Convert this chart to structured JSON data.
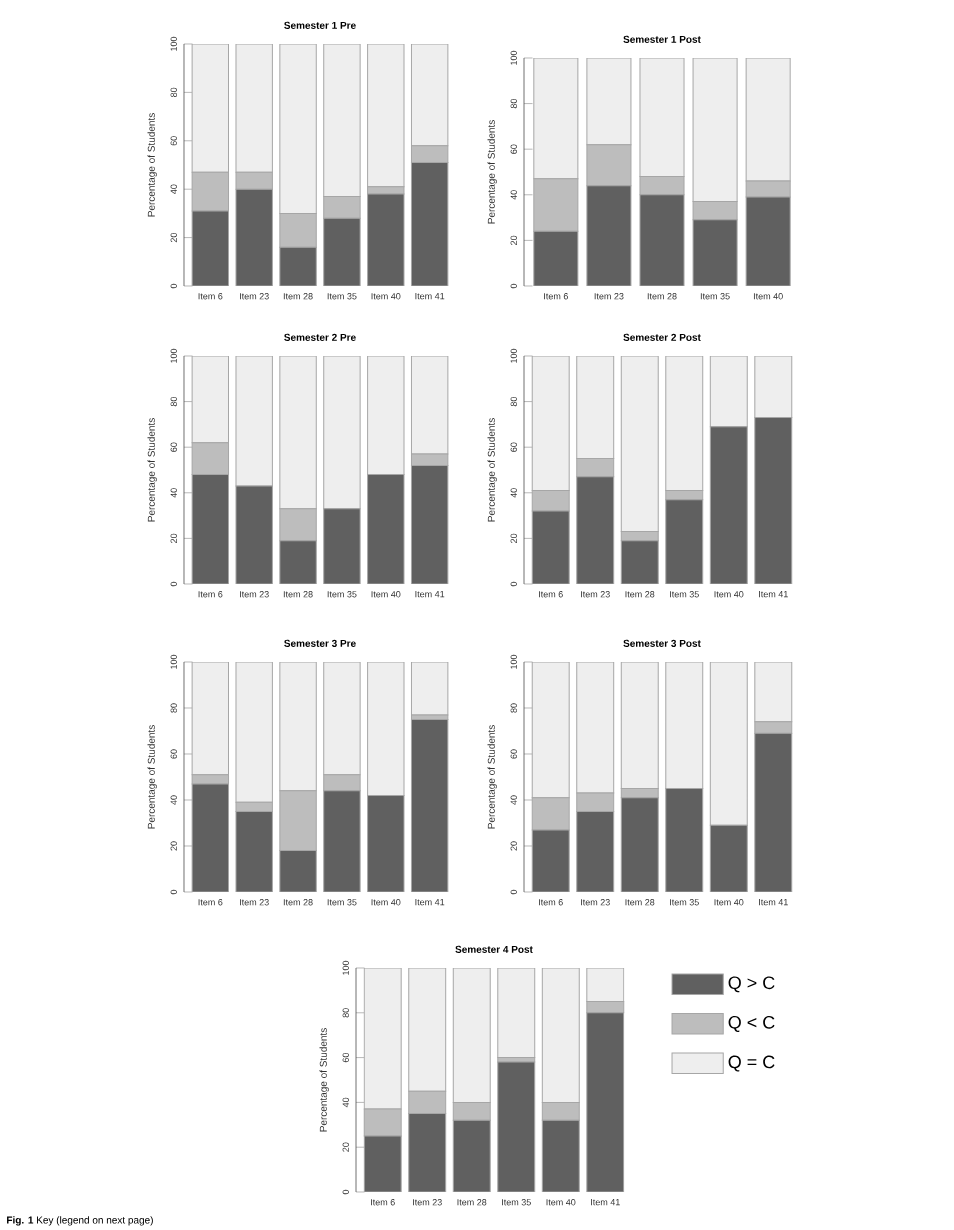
{
  "chart_data": [
    {
      "type": "bar",
      "stacked": true,
      "title": "Semester 1 Pre",
      "ylabel": "Percentage of Students",
      "categories": [
        "Item 6",
        "Item 23",
        "Item 28",
        "Item 35",
        "Item 40",
        "Item 41"
      ],
      "ylim": [
        0,
        100
      ],
      "yticks": [
        0,
        20,
        40,
        60,
        80,
        100
      ],
      "legend": false,
      "series": [
        {
          "color": "#606060",
          "values": [
            31,
            40,
            16,
            28,
            38,
            51
          ]
        },
        {
          "color": "#bdbdbd",
          "values": [
            16,
            7,
            14,
            9,
            3,
            7
          ]
        },
        {
          "color": "#eeeeee",
          "values": [
            53,
            53,
            70,
            63,
            59,
            42
          ]
        }
      ]
    },
    {
      "type": "bar",
      "stacked": true,
      "title": "Semester 1 Post",
      "ylabel": "Percentage of Students",
      "categories": [
        "Item 6",
        "Item 23",
        "Item 28",
        "Item 35",
        "Item 40"
      ],
      "ylim": [
        0,
        100
      ],
      "yticks": [
        0,
        20,
        40,
        60,
        80,
        100
      ],
      "legend": false,
      "series": [
        {
          "color": "#606060",
          "values": [
            24,
            44,
            40,
            29,
            39
          ]
        },
        {
          "color": "#bdbdbd",
          "values": [
            23,
            18,
            8,
            8,
            7
          ]
        },
        {
          "color": "#eeeeee",
          "values": [
            53,
            38,
            52,
            63,
            54
          ]
        }
      ]
    },
    {
      "type": "bar",
      "stacked": true,
      "title": "Semester 2 Pre",
      "ylabel": "Percentage of Students",
      "categories": [
        "Item 6",
        "Item 23",
        "Item 28",
        "Item 35",
        "Item 40",
        "Item 41"
      ],
      "ylim": [
        0,
        100
      ],
      "yticks": [
        0,
        20,
        40,
        60,
        80,
        100
      ],
      "legend": false,
      "series": [
        {
          "color": "#606060",
          "values": [
            48,
            43,
            19,
            33,
            48,
            52
          ]
        },
        {
          "color": "#bdbdbd",
          "values": [
            14,
            0,
            14,
            0,
            0,
            5
          ]
        },
        {
          "color": "#eeeeee",
          "values": [
            38,
            57,
            67,
            67,
            52,
            43
          ]
        }
      ]
    },
    {
      "type": "bar",
      "stacked": true,
      "title": "Semester 2 Post",
      "ylabel": "Percentage of Students",
      "categories": [
        "Item 6",
        "Item 23",
        "Item 28",
        "Item 35",
        "Item 40",
        "Item 41"
      ],
      "ylim": [
        0,
        100
      ],
      "yticks": [
        0,
        20,
        40,
        60,
        80,
        100
      ],
      "legend": false,
      "series": [
        {
          "color": "#606060",
          "values": [
            32,
            47,
            19,
            37,
            69,
            73
          ]
        },
        {
          "color": "#bdbdbd",
          "values": [
            9,
            8,
            4,
            4,
            0,
            0
          ]
        },
        {
          "color": "#eeeeee",
          "values": [
            59,
            45,
            77,
            59,
            31,
            27
          ]
        }
      ]
    },
    {
      "type": "bar",
      "stacked": true,
      "title": "Semester 3 Pre",
      "ylabel": "Percentage of Students",
      "categories": [
        "Item 6",
        "Item 23",
        "Item 28",
        "Item 35",
        "Item 40",
        "Item 41"
      ],
      "ylim": [
        0,
        100
      ],
      "yticks": [
        0,
        20,
        40,
        60,
        80,
        100
      ],
      "legend": false,
      "series": [
        {
          "color": "#606060",
          "values": [
            47,
            35,
            18,
            44,
            42,
            75
          ]
        },
        {
          "color": "#bdbdbd",
          "values": [
            4,
            4,
            26,
            7,
            0,
            2
          ]
        },
        {
          "color": "#eeeeee",
          "values": [
            49,
            61,
            56,
            49,
            58,
            23
          ]
        }
      ]
    },
    {
      "type": "bar",
      "stacked": true,
      "title": "Semester 3 Post",
      "ylabel": "Percentage of Students",
      "categories": [
        "Item 6",
        "Item 23",
        "Item 28",
        "Item 35",
        "Item 40",
        "Item 41"
      ],
      "ylim": [
        0,
        100
      ],
      "yticks": [
        0,
        20,
        40,
        60,
        80,
        100
      ],
      "legend": false,
      "series": [
        {
          "color": "#606060",
          "values": [
            27,
            35,
            41,
            45,
            29,
            69
          ]
        },
        {
          "color": "#bdbdbd",
          "values": [
            14,
            8,
            4,
            0,
            0,
            5
          ]
        },
        {
          "color": "#eeeeee",
          "values": [
            59,
            57,
            55,
            55,
            71,
            26
          ]
        }
      ]
    },
    {
      "type": "bar",
      "stacked": true,
      "title": "Semester 4 Post",
      "ylabel": "Percentage of Students",
      "categories": [
        "Item 6",
        "Item 23",
        "Item 28",
        "Item 35",
        "Item 40",
        "Item 41"
      ],
      "ylim": [
        0,
        100
      ],
      "yticks": [
        0,
        20,
        40,
        60,
        80,
        100
      ],
      "legend": "right",
      "annotations": [
        "**Fig. 1** Key (legend on next page)"
      ],
      "series": [
        {
          "name": "Q > C",
          "color": "#606060",
          "values": [
            25,
            35,
            32,
            58,
            32,
            80
          ]
        },
        {
          "name": "Q < C",
          "color": "#bdbdbd",
          "values": [
            12,
            10,
            8,
            2,
            8,
            5
          ]
        },
        {
          "name": "Q = C",
          "color": "#eeeeee",
          "values": [
            63,
            55,
            60,
            40,
            60,
            15
          ]
        }
      ]
    }
  ]
}
